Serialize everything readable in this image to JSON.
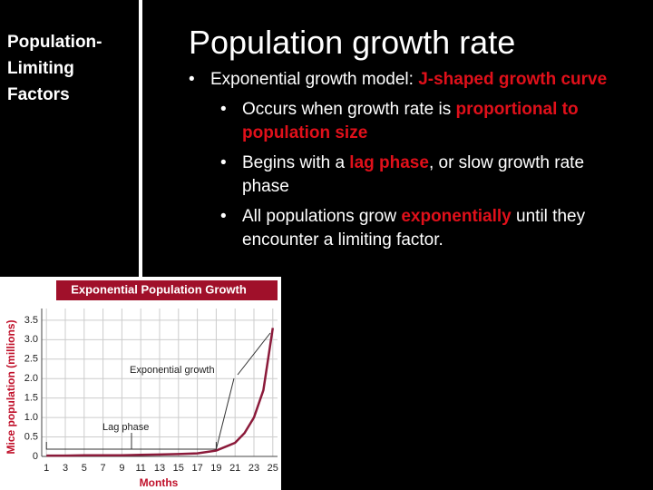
{
  "sidebar": {
    "title": "Population-Limiting Factors"
  },
  "slide": {
    "title": "Population growth rate",
    "bullets": [
      {
        "level": 1,
        "segments": [
          {
            "text": "Exponential growth model: ",
            "emphasis": false
          },
          {
            "text": "J-shaped growth curve",
            "emphasis": true
          }
        ]
      },
      {
        "level": 2,
        "segments": [
          {
            "text": "Occurs when growth rate is ",
            "emphasis": false
          },
          {
            "text": "proportional to population size",
            "emphasis": true
          }
        ]
      },
      {
        "level": 2,
        "segments": [
          {
            "text": "Begins with a ",
            "emphasis": false
          },
          {
            "text": "lag phase",
            "emphasis": true
          },
          {
            "text": ", or slow growth rate phase",
            "emphasis": false
          }
        ]
      },
      {
        "level": 2,
        "segments": [
          {
            "text": "All populations grow ",
            "emphasis": false
          },
          {
            "text": "exponentially",
            "emphasis": true
          },
          {
            "text": " until they encounter a limiting factor.",
            "emphasis": false
          }
        ]
      }
    ]
  },
  "chart_data": {
    "type": "line",
    "title": "Exponential Population Growth",
    "x_label": "Months",
    "y_label": "Mice population (millions)",
    "x": [
      1,
      3,
      5,
      7,
      9,
      11,
      13,
      15,
      17,
      19,
      21,
      22,
      23,
      24,
      25
    ],
    "values": [
      0.02,
      0.02,
      0.03,
      0.03,
      0.03,
      0.04,
      0.05,
      0.06,
      0.08,
      0.15,
      0.35,
      0.6,
      1.0,
      1.7,
      3.3
    ],
    "color": "#8b1a3a",
    "xlim": [
      0.5,
      25.5
    ],
    "ylim": [
      0,
      3.8
    ],
    "xticks": [
      1,
      3,
      5,
      7,
      9,
      11,
      13,
      15,
      17,
      19,
      21,
      23,
      25
    ],
    "yticks": [
      0,
      0.5,
      {
        "value": 1,
        "label": "1.0"
      },
      1.5,
      {
        "value": 2,
        "label": "2.0"
      },
      2.5,
      {
        "value": 3,
        "label": "3.0"
      },
      3.5
    ],
    "grid": true,
    "annotations": [
      "Exponential growth",
      "Lag phase"
    ]
  }
}
